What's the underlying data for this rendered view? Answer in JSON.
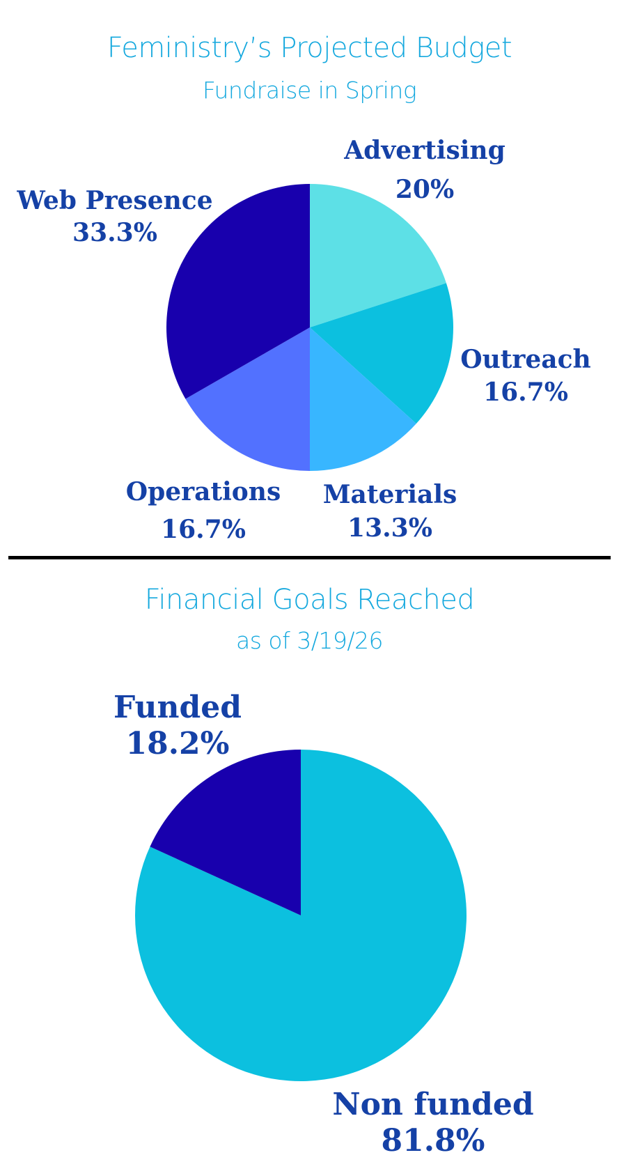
{
  "colors": {
    "title": "#14a8de",
    "label": "#1541a6",
    "divider": "#000000"
  },
  "chart_data": [
    {
      "type": "pie",
      "title": "Feministry’s Projected Budget",
      "subtitle": "Fundraise in Spring",
      "slices": [
        {
          "label": "Advertising",
          "value": 20,
          "value_label": "20%",
          "color": "#5de0e6"
        },
        {
          "label": "Outreach",
          "value": 16.7,
          "value_label": "16.7%",
          "color": "#0cc0df"
        },
        {
          "label": "Materials",
          "value": 13.3,
          "value_label": "13.3%",
          "color": "#38b6ff"
        },
        {
          "label": "Operations",
          "value": 16.7,
          "value_label": "16.7%",
          "color": "#5271ff"
        },
        {
          "label": "Web Presence",
          "value": 33.3,
          "value_label": "33.3%",
          "color": "#1800ad"
        }
      ]
    },
    {
      "type": "pie",
      "title": "Financial Goals Reached",
      "subtitle": "as of 3/19/26",
      "slices": [
        {
          "label": "Non funded",
          "value": 81.8,
          "value_label": "81.8%",
          "color": "#0cc0df"
        },
        {
          "label": "Funded",
          "value": 18.2,
          "value_label": "18.2%",
          "color": "#1800ad"
        }
      ]
    }
  ]
}
